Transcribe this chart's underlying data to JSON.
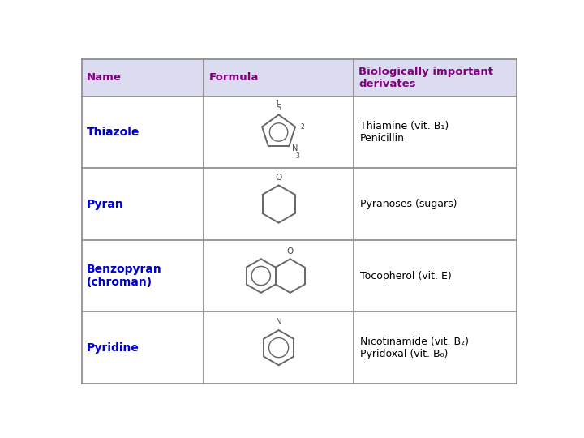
{
  "header": [
    "Name",
    "Formula",
    "Biologically important\nderivates"
  ],
  "rows": [
    {
      "name": "Thiazole",
      "derivates": "Thiamine (vit. B₁)\nPenicillin"
    },
    {
      "name": "Pyran",
      "derivates": "Pyranoses (sugars)"
    },
    {
      "name": "Benzopyran\n(chroman)",
      "derivates": "Tocopherol (vit. E)"
    },
    {
      "name": "Pyridine",
      "derivates": "Nicotinamide (vit. B₂)\nPyridoxal (vit. B₆)"
    }
  ],
  "header_color": "#800080",
  "name_color": "#0000CC",
  "text_color": "#000000",
  "bg_color": "#FFFFFF",
  "header_bg": "#DCDCF0",
  "border_color": "#888888",
  "fig_width": 7.2,
  "fig_height": 5.4
}
